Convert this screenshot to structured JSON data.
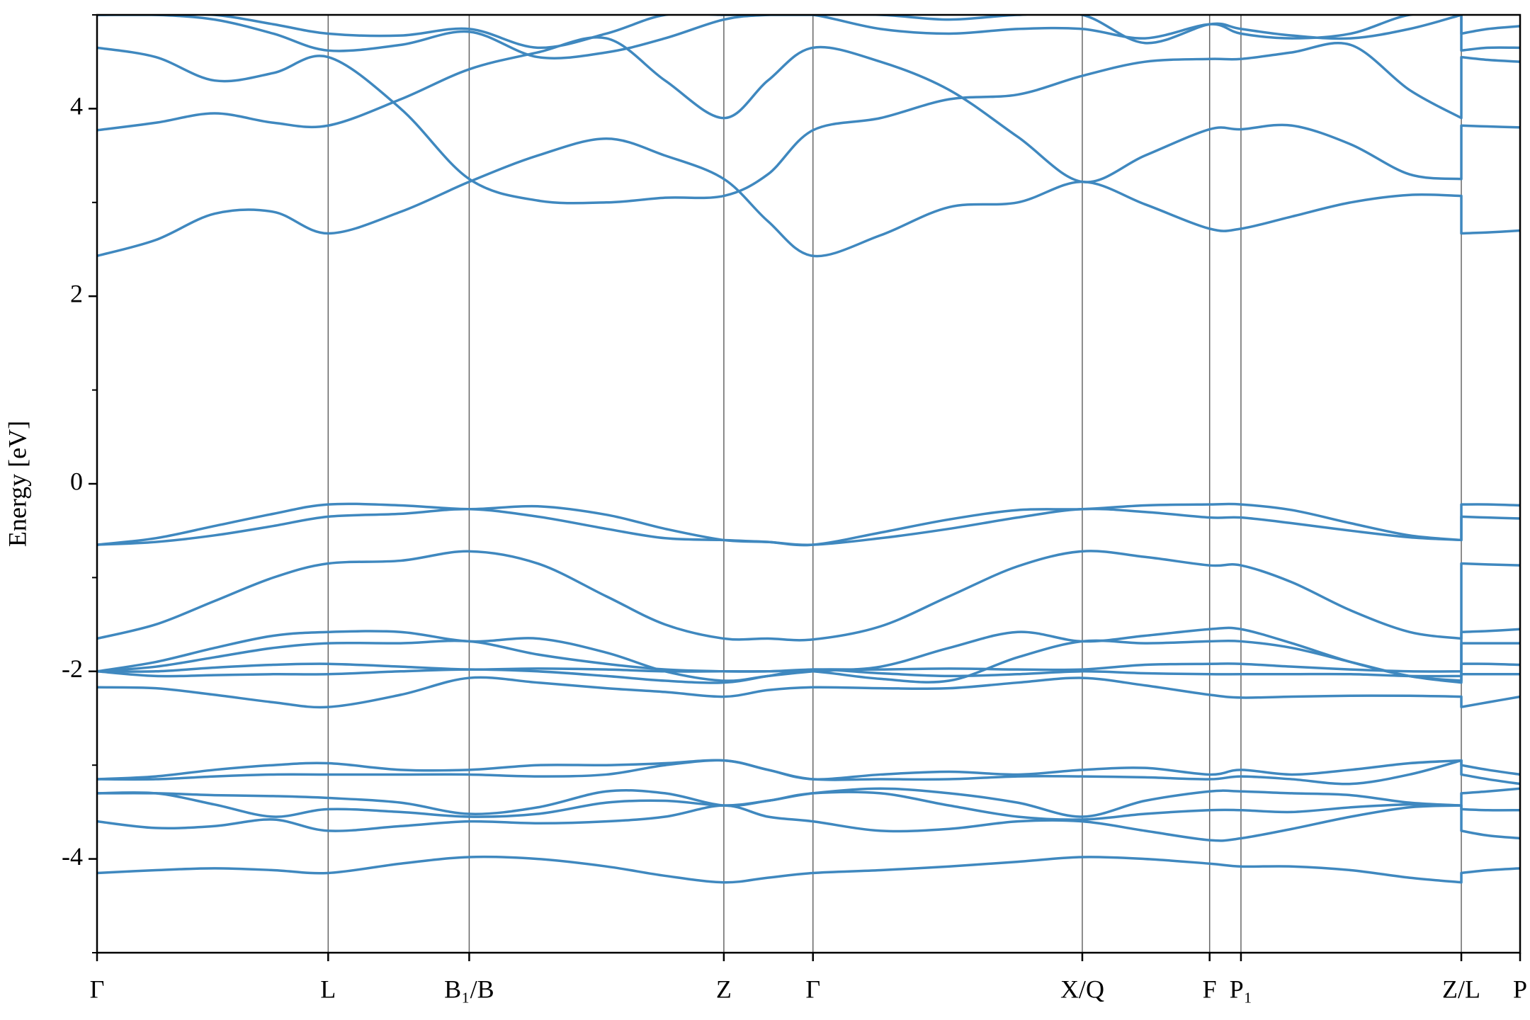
{
  "chart_data": {
    "type": "line",
    "ylabel": "Energy [eV]",
    "color": "#3f88bf",
    "ylim": [
      -5,
      5
    ],
    "yticks": [
      -4,
      -2,
      0,
      2,
      4
    ],
    "yminorticks": [
      -5,
      -3,
      -1,
      1,
      3,
      5
    ],
    "xlim": [
      0,
      1.453
    ],
    "xticks": [
      {
        "value": 0,
        "label": "Γ"
      },
      {
        "value": 0.236,
        "label": "L"
      },
      {
        "value": 0.38,
        "label": "B₁/B"
      },
      {
        "value": 0.64,
        "label": "Z"
      },
      {
        "value": 0.731,
        "label": "Γ"
      },
      {
        "value": 1.006,
        "label": "X/Q"
      },
      {
        "value": 1.136,
        "label": "F"
      },
      {
        "value": 1.168,
        "label": "P₁"
      },
      {
        "value": 1.393,
        "label": "Z/L"
      },
      {
        "value": 1.453,
        "label": "P"
      }
    ],
    "vlines": true,
    "x": [
      0,
      0.06,
      0.12,
      0.18,
      0.236,
      0.31,
      0.38,
      0.45,
      0.52,
      0.58,
      0.64,
      0.685,
      0.731,
      0.8,
      0.87,
      0.94,
      1.006,
      1.07,
      1.136,
      1.168,
      1.22,
      1.28,
      1.34,
      1.393,
      1.393,
      1.42,
      1.453
    ],
    "series": [
      {
        "values": [
          -0.65,
          -0.58,
          -0.45,
          -0.32,
          -0.22,
          -0.23,
          -0.27,
          -0.24,
          -0.33,
          -0.48,
          -0.6,
          -0.62,
          -0.65,
          -0.52,
          -0.38,
          -0.28,
          -0.27,
          -0.23,
          -0.22,
          -0.22,
          -0.28,
          -0.42,
          -0.55,
          -0.6,
          -0.22,
          -0.22,
          -0.23
        ]
      },
      {
        "values": [
          -0.65,
          -0.62,
          -0.55,
          -0.45,
          -0.35,
          -0.32,
          -0.27,
          -0.35,
          -0.48,
          -0.58,
          -0.6,
          -0.62,
          -0.65,
          -0.58,
          -0.48,
          -0.36,
          -0.27,
          -0.3,
          -0.36,
          -0.36,
          -0.42,
          -0.5,
          -0.57,
          -0.6,
          -0.35,
          -0.36,
          -0.37
        ]
      },
      {
        "values": [
          -1.65,
          -1.5,
          -1.25,
          -1.0,
          -0.85,
          -0.82,
          -0.72,
          -0.85,
          -1.2,
          -1.5,
          -1.65,
          -1.65,
          -1.66,
          -1.52,
          -1.2,
          -0.88,
          -0.72,
          -0.78,
          -0.87,
          -0.87,
          -1.05,
          -1.35,
          -1.58,
          -1.65,
          -0.85,
          -0.86,
          -0.87
        ]
      },
      {
        "values": [
          -2.0,
          -1.9,
          -1.75,
          -1.62,
          -1.58,
          -1.58,
          -1.68,
          -1.65,
          -1.8,
          -2.0,
          -2.1,
          -2.05,
          -2.0,
          -1.95,
          -1.75,
          -1.58,
          -1.68,
          -1.62,
          -1.55,
          -1.55,
          -1.7,
          -1.9,
          -2.05,
          -2.1,
          -1.58,
          -1.57,
          -1.55
        ]
      },
      {
        "values": [
          -2.0,
          -1.95,
          -1.85,
          -1.75,
          -1.7,
          -1.7,
          -1.68,
          -1.82,
          -1.92,
          -1.98,
          -2.0,
          -2.0,
          -2.0,
          -2.08,
          -2.1,
          -1.85,
          -1.68,
          -1.7,
          -1.68,
          -1.68,
          -1.75,
          -1.9,
          -2.05,
          -2.12,
          -1.7,
          -1.7,
          -1.7
        ]
      },
      {
        "values": [
          -2.0,
          -2.0,
          -1.96,
          -1.93,
          -1.92,
          -1.95,
          -1.98,
          -1.97,
          -1.98,
          -2.0,
          -2.0,
          -2.0,
          -1.98,
          -1.98,
          -1.97,
          -1.98,
          -1.98,
          -1.93,
          -1.92,
          -1.92,
          -1.95,
          -1.98,
          -2.0,
          -2.0,
          -1.92,
          -1.92,
          -1.93
        ]
      },
      {
        "values": [
          -2.0,
          -2.05,
          -2.04,
          -2.03,
          -2.03,
          -2.0,
          -1.98,
          -2.0,
          -2.05,
          -2.1,
          -2.12,
          -2.05,
          -1.98,
          -2.02,
          -2.05,
          -2.03,
          -2.0,
          -2.02,
          -2.03,
          -2.03,
          -2.03,
          -2.03,
          -2.05,
          -2.05,
          -2.03,
          -2.03,
          -2.03
        ]
      },
      {
        "values": [
          -2.17,
          -2.18,
          -2.25,
          -2.33,
          -2.38,
          -2.25,
          -2.07,
          -2.12,
          -2.18,
          -2.22,
          -2.27,
          -2.2,
          -2.17,
          -2.18,
          -2.18,
          -2.12,
          -2.07,
          -2.15,
          -2.25,
          -2.28,
          -2.27,
          -2.26,
          -2.26,
          -2.27,
          -2.38,
          -2.33,
          -2.27
        ]
      },
      {
        "values": [
          -3.15,
          -3.12,
          -3.05,
          -3.0,
          -2.98,
          -3.05,
          -3.05,
          -3.0,
          -3.0,
          -2.98,
          -2.95,
          -3.05,
          -3.15,
          -3.1,
          -3.07,
          -3.1,
          -3.05,
          -3.03,
          -3.1,
          -3.05,
          -3.1,
          -3.05,
          -2.98,
          -2.95,
          -3.0,
          -3.05,
          -3.1
        ]
      },
      {
        "values": [
          -3.15,
          -3.15,
          -3.12,
          -3.1,
          -3.1,
          -3.1,
          -3.1,
          -3.12,
          -3.1,
          -3.0,
          -2.95,
          -3.05,
          -3.15,
          -3.15,
          -3.15,
          -3.12,
          -3.12,
          -3.13,
          -3.15,
          -3.12,
          -3.15,
          -3.2,
          -3.1,
          -2.95,
          -3.1,
          -3.15,
          -3.2
        ]
      },
      {
        "values": [
          -3.3,
          -3.3,
          -3.32,
          -3.33,
          -3.35,
          -3.4,
          -3.52,
          -3.45,
          -3.28,
          -3.3,
          -3.43,
          -3.38,
          -3.3,
          -3.25,
          -3.3,
          -3.4,
          -3.55,
          -3.38,
          -3.28,
          -3.28,
          -3.3,
          -3.32,
          -3.4,
          -3.43,
          -3.3,
          -3.28,
          -3.25
        ]
      },
      {
        "values": [
          -3.3,
          -3.3,
          -3.42,
          -3.55,
          -3.47,
          -3.5,
          -3.55,
          -3.52,
          -3.4,
          -3.38,
          -3.43,
          -3.38,
          -3.3,
          -3.3,
          -3.43,
          -3.55,
          -3.58,
          -3.52,
          -3.48,
          -3.48,
          -3.5,
          -3.45,
          -3.42,
          -3.43,
          -3.47,
          -3.48,
          -3.48
        ]
      },
      {
        "values": [
          -3.6,
          -3.67,
          -3.65,
          -3.58,
          -3.7,
          -3.65,
          -3.6,
          -3.62,
          -3.6,
          -3.55,
          -3.43,
          -3.55,
          -3.6,
          -3.7,
          -3.68,
          -3.6,
          -3.6,
          -3.7,
          -3.8,
          -3.78,
          -3.68,
          -3.55,
          -3.45,
          -3.43,
          -3.7,
          -3.75,
          -3.78
        ]
      },
      {
        "values": [
          -4.15,
          -4.12,
          -4.1,
          -4.12,
          -4.15,
          -4.05,
          -3.98,
          -4.0,
          -4.08,
          -4.18,
          -4.25,
          -4.2,
          -4.15,
          -4.12,
          -4.08,
          -4.03,
          -3.98,
          -4.0,
          -4.05,
          -4.08,
          -4.08,
          -4.12,
          -4.2,
          -4.25,
          -4.15,
          -4.12,
          -4.1
        ]
      },
      {
        "values": [
          2.43,
          2.6,
          2.88,
          2.9,
          2.67,
          2.9,
          3.22,
          3.5,
          3.68,
          3.5,
          3.25,
          2.8,
          2.43,
          2.65,
          2.95,
          3.0,
          3.22,
          2.98,
          2.72,
          2.72,
          2.85,
          3.0,
          3.08,
          3.07,
          2.67,
          2.68,
          2.7
        ]
      },
      {
        "values": [
          3.77,
          3.85,
          3.95,
          3.85,
          3.82,
          4.1,
          4.42,
          4.6,
          4.75,
          4.3,
          3.9,
          4.3,
          4.65,
          4.5,
          4.2,
          3.7,
          3.22,
          3.5,
          3.78,
          3.78,
          3.82,
          3.62,
          3.3,
          3.25,
          3.82,
          3.81,
          3.8
        ]
      },
      {
        "values": [
          4.65,
          4.55,
          4.3,
          4.38,
          4.55,
          4.0,
          3.25,
          3.02,
          3.0,
          3.05,
          3.07,
          3.3,
          3.77,
          3.9,
          4.1,
          4.15,
          4.35,
          4.5,
          4.53,
          4.53,
          4.6,
          4.68,
          4.2,
          3.9,
          4.55,
          4.52,
          4.5
        ]
      },
      {
        "values": [
          5.0,
          5.0,
          4.95,
          4.8,
          4.62,
          4.68,
          4.82,
          4.55,
          4.6,
          4.75,
          4.95,
          5.0,
          5.0,
          4.85,
          4.8,
          4.85,
          4.85,
          4.75,
          4.9,
          4.8,
          4.75,
          4.8,
          5.0,
          5.0,
          4.62,
          4.65,
          4.65
        ]
      },
      {
        "values": [
          5.0,
          5.0,
          5.0,
          4.9,
          4.8,
          4.78,
          4.85,
          4.65,
          4.8,
          5.0,
          5.0,
          5.0,
          5.0,
          5.0,
          4.95,
          5.0,
          5.0,
          4.7,
          4.9,
          4.85,
          4.78,
          4.75,
          4.85,
          5.0,
          4.8,
          4.85,
          4.88
        ]
      }
    ]
  }
}
